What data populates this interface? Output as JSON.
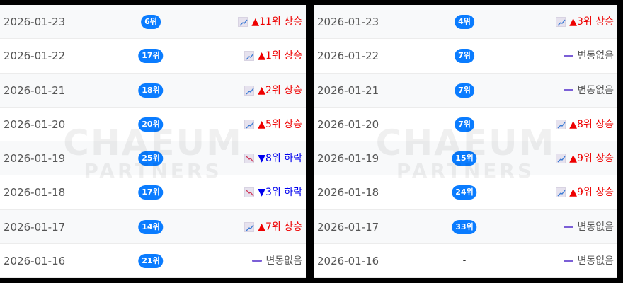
{
  "watermark": {
    "line1": "CHAEUM",
    "line2": "PARTNERS"
  },
  "colors": {
    "badge": "#0a7cff",
    "up": "#ee0000",
    "down": "#0000ee",
    "none_bar": "#7b5fd6"
  },
  "panels": [
    {
      "rows": [
        {
          "date": "2026-01-23",
          "rank": "6위",
          "dir": "up",
          "change": "▲11위 상승",
          "icon": "chart-increasing-icon"
        },
        {
          "date": "2026-01-22",
          "rank": "17위",
          "dir": "up",
          "change": "▲1위 상승",
          "icon": "chart-increasing-icon"
        },
        {
          "date": "2026-01-21",
          "rank": "18위",
          "dir": "up",
          "change": "▲2위 상승",
          "icon": "chart-increasing-icon"
        },
        {
          "date": "2026-01-20",
          "rank": "20위",
          "dir": "up",
          "change": "▲5위 상승",
          "icon": "chart-increasing-icon"
        },
        {
          "date": "2026-01-19",
          "rank": "25위",
          "dir": "down",
          "change": "▼8위 하락",
          "icon": "chart-decreasing-icon"
        },
        {
          "date": "2026-01-18",
          "rank": "17위",
          "dir": "down",
          "change": "▼3위 하락",
          "icon": "chart-decreasing-icon"
        },
        {
          "date": "2026-01-17",
          "rank": "14위",
          "dir": "up",
          "change": "▲7위 상승",
          "icon": "chart-increasing-icon"
        },
        {
          "date": "2026-01-16",
          "rank": "21위",
          "dir": "none",
          "change": "변동없음",
          "icon": "dash-icon"
        }
      ]
    },
    {
      "rows": [
        {
          "date": "2026-01-23",
          "rank": "4위",
          "dir": "up",
          "change": "▲3위 상승",
          "icon": "chart-increasing-icon"
        },
        {
          "date": "2026-01-22",
          "rank": "7위",
          "dir": "none",
          "change": "변동없음",
          "icon": "dash-icon"
        },
        {
          "date": "2026-01-21",
          "rank": "7위",
          "dir": "none",
          "change": "변동없음",
          "icon": "dash-icon"
        },
        {
          "date": "2026-01-20",
          "rank": "7위",
          "dir": "up",
          "change": "▲8위 상승",
          "icon": "chart-increasing-icon"
        },
        {
          "date": "2026-01-19",
          "rank": "15위",
          "dir": "up",
          "change": "▲9위 상승",
          "icon": "chart-increasing-icon"
        },
        {
          "date": "2026-01-18",
          "rank": "24위",
          "dir": "up",
          "change": "▲9위 상승",
          "icon": "chart-increasing-icon"
        },
        {
          "date": "2026-01-17",
          "rank": "33위",
          "dir": "none",
          "change": "변동없음",
          "icon": "dash-icon"
        },
        {
          "date": "2026-01-16",
          "rank": "-",
          "dir": "none",
          "change": "변동없음",
          "icon": "dash-icon"
        }
      ]
    }
  ]
}
